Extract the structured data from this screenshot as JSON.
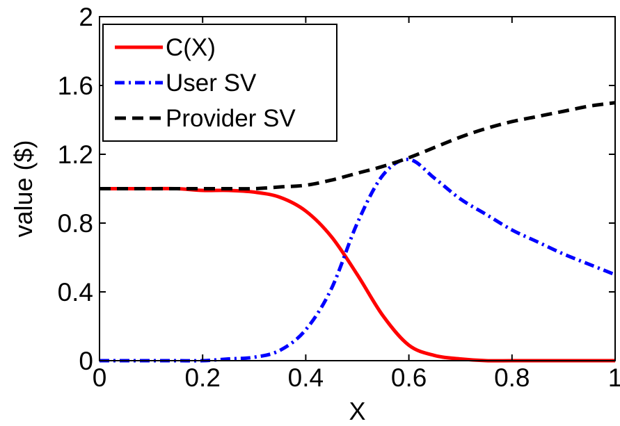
{
  "chart_data": {
    "type": "line",
    "xlabel": "X",
    "ylabel": "value ($)",
    "xlim": [
      0,
      1
    ],
    "ylim": [
      0,
      2
    ],
    "x_ticks": [
      "0",
      "0.2",
      "0.4",
      "0.6",
      "0.8",
      "1"
    ],
    "y_ticks": [
      "0",
      "0.4",
      "0.8",
      "1.2",
      "1.6",
      "2"
    ],
    "grid": false,
    "legend_position": "top-left",
    "x": [
      0,
      0.05,
      0.1,
      0.15,
      0.2,
      0.25,
      0.3,
      0.35,
      0.4,
      0.45,
      0.5,
      0.55,
      0.6,
      0.65,
      0.7,
      0.75,
      0.8,
      0.85,
      0.9,
      0.95,
      1.0
    ],
    "series": [
      {
        "name": "C(X)",
        "color": "#ff0000",
        "style": "solid",
        "values": [
          1.0,
          1.0,
          1.0,
          1.0,
          0.99,
          0.99,
          0.98,
          0.95,
          0.87,
          0.72,
          0.5,
          0.26,
          0.09,
          0.03,
          0.01,
          0.0,
          0.0,
          0.0,
          0.0,
          0.0,
          0.0
        ]
      },
      {
        "name": "User SV",
        "color": "#0000ff",
        "style": "dashdot",
        "values": [
          0.0,
          0.0,
          0.0,
          0.0,
          0.0,
          0.01,
          0.02,
          0.06,
          0.18,
          0.42,
          0.8,
          1.08,
          1.17,
          1.06,
          0.94,
          0.85,
          0.76,
          0.69,
          0.62,
          0.56,
          0.5
        ]
      },
      {
        "name": "Provider SV",
        "color": "#000000",
        "style": "dashed",
        "values": [
          1.0,
          1.0,
          1.0,
          1.0,
          1.0,
          1.0,
          1.0,
          1.01,
          1.02,
          1.05,
          1.09,
          1.13,
          1.18,
          1.24,
          1.3,
          1.35,
          1.39,
          1.42,
          1.45,
          1.48,
          1.5
        ]
      }
    ]
  }
}
